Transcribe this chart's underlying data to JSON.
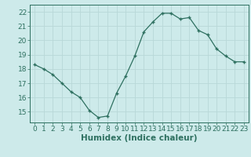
{
  "x": [
    0,
    1,
    2,
    3,
    4,
    5,
    6,
    7,
    8,
    9,
    10,
    11,
    12,
    13,
    14,
    15,
    16,
    17,
    18,
    19,
    20,
    21,
    22,
    23
  ],
  "y": [
    18.3,
    18.0,
    17.6,
    17.0,
    16.4,
    16.0,
    15.1,
    14.6,
    14.7,
    16.3,
    17.5,
    18.9,
    20.6,
    21.3,
    21.9,
    21.9,
    21.5,
    21.6,
    20.7,
    20.4,
    19.4,
    18.9,
    18.5,
    18.5
  ],
  "xlabel": "Humidex (Indice chaleur)",
  "ylim": [
    14.25,
    22.5
  ],
  "xlim": [
    -0.5,
    23.5
  ],
  "yticks": [
    15,
    16,
    17,
    18,
    19,
    20,
    21,
    22
  ],
  "xticks": [
    0,
    1,
    2,
    3,
    4,
    5,
    6,
    7,
    8,
    9,
    10,
    11,
    12,
    13,
    14,
    15,
    16,
    17,
    18,
    19,
    20,
    21,
    22,
    23
  ],
  "line_color": "#2e7060",
  "marker_color": "#2e7060",
  "bg_color": "#cdeaea",
  "grid_color": "#b8d8d8",
  "xlabel_fontsize": 7.5,
  "tick_fontsize": 6.5
}
